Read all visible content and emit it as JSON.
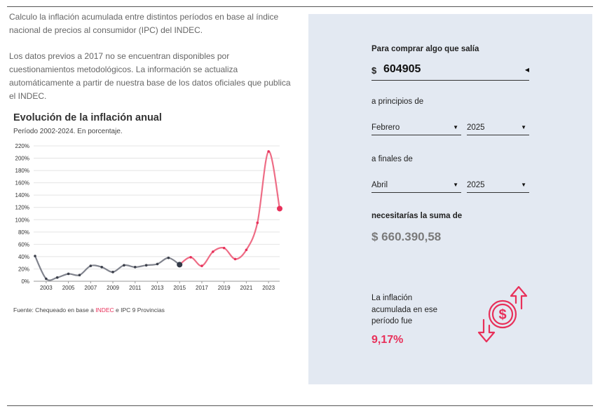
{
  "intro": {
    "p1": "Calculo la inflación acumulada entre distintos períodos en base al índice nacional de precios al consumidor (IPC) del INDEC.",
    "p2": "Los datos previos a 2017 no se encuentran disponibles por cuestionamientos metodológicos. La información se actualiza automáticamente a partir de nuestra base de los datos oficiales que publica el INDEC."
  },
  "chart_data": {
    "type": "line",
    "title": "Evolución de la inflación anual",
    "subtitle": "Período 2002-2024. En porcentaje.",
    "xlabel": "",
    "ylabel": "",
    "x": [
      2002,
      2003,
      2004,
      2005,
      2006,
      2007,
      2008,
      2009,
      2010,
      2011,
      2012,
      2013,
      2014,
      2015,
      2016,
      2017,
      2018,
      2019,
      2020,
      2021,
      2022,
      2023,
      2024
    ],
    "values": [
      41,
      4,
      6,
      12,
      10,
      25,
      23,
      15,
      26,
      23,
      26,
      28,
      38,
      27,
      39,
      25,
      48,
      54,
      36,
      51,
      95,
      211,
      118
    ],
    "y_ticks": [
      "0%",
      "20%",
      "40%",
      "60%",
      "80%",
      "100%",
      "120%",
      "140%",
      "160%",
      "180%",
      "200%",
      "220%"
    ],
    "x_ticks": [
      "2003",
      "2005",
      "2007",
      "2009",
      "2011",
      "2013",
      "2015",
      "2017",
      "2019",
      "2021",
      "2023"
    ],
    "ylim": [
      0,
      220
    ],
    "grid": true,
    "series_colors": {
      "historical": "#6b6f7a",
      "official": "#ee6d86",
      "marker_end": "#e8305a",
      "marker_break": "#333a48"
    }
  },
  "source": {
    "prefix": "Fuente: Chequeado en base a ",
    "link": "INDEC",
    "suffix": " e IPC 9 Provincias"
  },
  "calculator": {
    "buy_label": "Para comprar algo que salía",
    "currency": "$",
    "amount": "604905",
    "start_label": "a principios de",
    "start_month": "Febrero",
    "start_year": "2025",
    "end_label": "a finales de",
    "end_month": "Abril",
    "end_year": "2025",
    "need_label": "necesitarías la suma de",
    "result": "$ 660.390,58",
    "inflation_text": "La inflación acumulada en ese período fue",
    "inflation_value": "9,17%"
  },
  "icons": {
    "money": "money-exchange-icon",
    "dropdown": "caret-down-icon",
    "amount_caret": "caret-left-icon"
  },
  "colors": {
    "accent": "#e8305a",
    "panel_bg": "#e3e9f2"
  }
}
